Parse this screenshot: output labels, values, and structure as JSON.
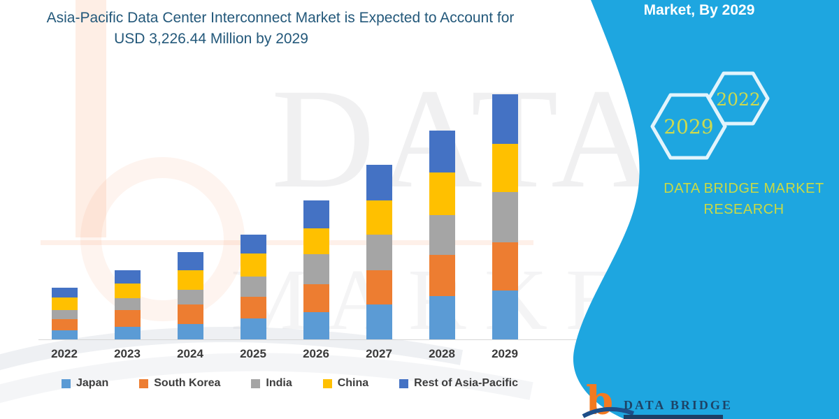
{
  "header": {
    "title_line1": "Asia-Pacific Data Center Interconnect Market is Expected to Account for",
    "title_line2": "USD 3,226.44 Million by 2029",
    "panel_heading": "Market, By 2029"
  },
  "side_panel": {
    "panel_color": "#17a3df",
    "hexagon_large_label": "2029",
    "hexagon_small_label": "2022",
    "hexagon_stroke_color": "#e2f4fc",
    "brand_text_color": "#c9da45",
    "brand_line1": "DATA BRIDGE MARKET",
    "brand_line2": "RESEARCH"
  },
  "footer_logo": {
    "glyph": "b",
    "glyph_color": "#f37a21",
    "brand": "DATA BRIDGE",
    "brand_color": "#1d4366"
  },
  "watermark": {
    "line1": "DATA BRIDGE",
    "line2": "MARKET RESEARCH"
  },
  "chart_data": {
    "type": "bar",
    "stacked": true,
    "unit": "USD Million",
    "title": "Asia-Pacific Data Center Interconnect Market is Expected to Account for USD 3,226.44 Million by 2029",
    "highlight_value_2029_total": 3226.44,
    "categories": [
      "2022",
      "2023",
      "2024",
      "2025",
      "2026",
      "2027",
      "2028",
      "2029"
    ],
    "series": [
      {
        "name": "Japan",
        "color": "#5B9BD5",
        "values": [
          120,
          165,
          202,
          276,
          359,
          460,
          570,
          643
        ]
      },
      {
        "name": "South Korea",
        "color": "#ED7D31",
        "values": [
          147,
          220,
          257,
          285,
          368,
          450,
          542,
          634
        ]
      },
      {
        "name": "India",
        "color": "#A5A5A5",
        "values": [
          119,
          156,
          193,
          267,
          395,
          469,
          524,
          662
        ]
      },
      {
        "name": "China",
        "color": "#FFC000",
        "values": [
          165,
          193,
          257,
          303,
          340,
          450,
          561,
          634
        ]
      },
      {
        "name": "Rest of Asia-Pacific",
        "color": "#4472C4",
        "values": [
          129,
          175,
          239,
          248,
          368,
          469,
          552,
          653.44
        ]
      }
    ],
    "totals": [
      680,
      909,
      1148,
      1379,
      1830,
      2298,
      2749,
      3226.44
    ],
    "ylim": [
      0,
      3300
    ],
    "gridlines": false,
    "legend_position": "bottom",
    "legend_order": [
      "Japan",
      "South Korea",
      "India",
      "China",
      "Rest of Asia-Pacific"
    ]
  }
}
